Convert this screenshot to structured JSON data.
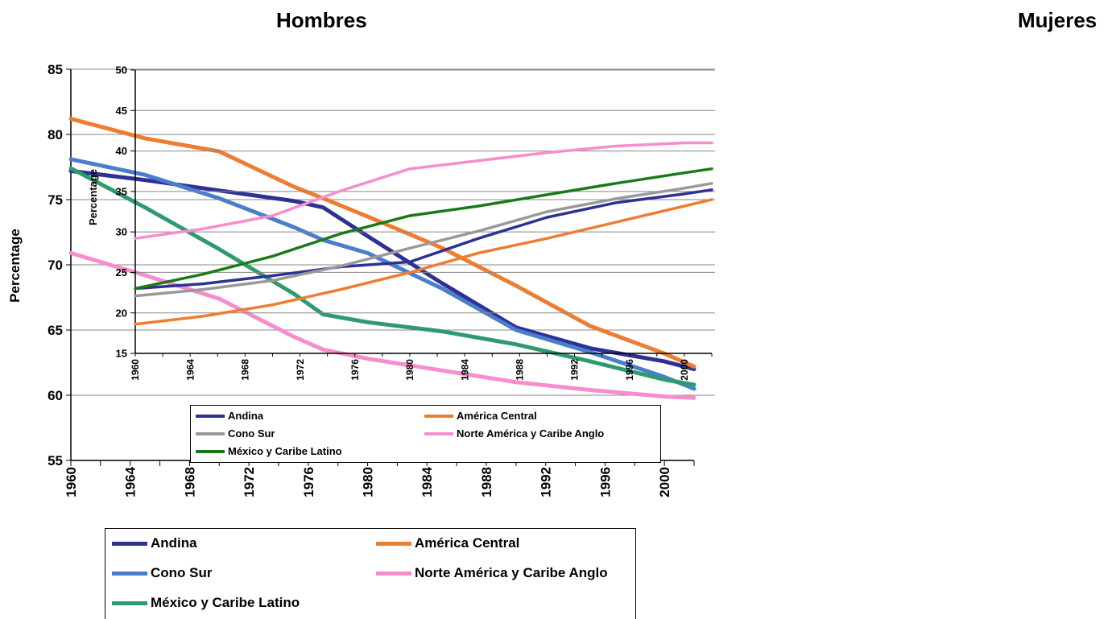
{
  "titles": {
    "left": "Hombres",
    "right": "Mujeres"
  },
  "chart_data": [
    {
      "type": "line",
      "id": "hombres",
      "title": "",
      "xlabel": "",
      "ylabel": "Percentage",
      "ylim": [
        55,
        85
      ],
      "yticks": [
        55,
        60,
        65,
        70,
        75,
        80,
        85
      ],
      "xlim": [
        1960,
        2002
      ],
      "xticks": [
        1960,
        1964,
        1968,
        1972,
        1976,
        1980,
        1984,
        1988,
        1992,
        1996,
        2000
      ],
      "grid": true,
      "legend_position": "bottom",
      "x": [
        1960,
        1965,
        1970,
        1975,
        1977,
        1980,
        1985,
        1990,
        1995,
        2000,
        2002
      ],
      "series": [
        {
          "name": "Andina",
          "color": "#2e3192",
          "values": [
            77.2,
            76.5,
            75.7,
            74.9,
            74.4,
            72.2,
            68.6,
            65.2,
            63.6,
            62.6,
            62.0
          ]
        },
        {
          "name": "América Central",
          "color": "#ed7d31",
          "values": [
            81.2,
            79.7,
            78.7,
            76.0,
            75.1,
            73.7,
            71.3,
            68.4,
            65.3,
            63.2,
            62.2
          ]
        },
        {
          "name": "Cono Sur",
          "color": "#4a7ecb",
          "values": [
            78.1,
            76.9,
            75.1,
            72.9,
            71.9,
            70.9,
            68.2,
            65.0,
            63.3,
            61.4,
            60.5
          ]
        },
        {
          "name": "Norte América y Caribe Anglo",
          "color": "#f68dcd",
          "values": [
            70.9,
            69.2,
            67.4,
            64.5,
            63.5,
            62.8,
            61.9,
            61.0,
            60.4,
            59.9,
            59.8
          ]
        },
        {
          "name": "México y Caribe Latino",
          "color": "#2e9a6e",
          "values": [
            77.4,
            74.4,
            71.2,
            67.8,
            66.2,
            65.6,
            64.9,
            63.9,
            62.6,
            61.2,
            60.8
          ]
        }
      ]
    },
    {
      "type": "line",
      "id": "inset",
      "title": "",
      "xlabel": "",
      "ylabel": "Percentage",
      "ylim": [
        15,
        50
      ],
      "yticks": [
        15,
        20,
        25,
        30,
        35,
        40,
        45,
        50
      ],
      "xlim": [
        1960,
        2002
      ],
      "xticks": [
        1960,
        1964,
        1968,
        1972,
        1976,
        1980,
        1984,
        1988,
        1992,
        1996,
        2000
      ],
      "grid": true,
      "legend_position": "bottom",
      "x": [
        1960,
        1965,
        1970,
        1975,
        1980,
        1985,
        1990,
        1995,
        2000,
        2002
      ],
      "series": [
        {
          "name": "Andina",
          "color": "#2e3192",
          "values": [
            23.0,
            23.6,
            24.6,
            25.7,
            26.3,
            29.2,
            31.8,
            33.6,
            34.7,
            35.2
          ]
        },
        {
          "name": "América Central",
          "color": "#ed7d31",
          "values": [
            18.6,
            19.6,
            21.0,
            22.9,
            25.0,
            27.4,
            29.2,
            31.2,
            33.2,
            34.0
          ]
        },
        {
          "name": "Cono Sur",
          "color": "#999999",
          "values": [
            22.1,
            22.9,
            24.0,
            25.8,
            28.0,
            30.1,
            32.5,
            34.1,
            35.4,
            36.0
          ]
        },
        {
          "name": "Norte América y Caribe Anglo",
          "color": "#f68dcd",
          "values": [
            29.2,
            30.4,
            32.0,
            35.1,
            37.8,
            38.8,
            39.8,
            40.6,
            41.0,
            41.0
          ]
        },
        {
          "name": "México y Caribe Latino",
          "color": "#1a7a1a",
          "values": [
            23.0,
            24.8,
            27.0,
            29.8,
            32.0,
            33.2,
            34.6,
            36.0,
            37.3,
            37.8
          ]
        }
      ]
    }
  ]
}
